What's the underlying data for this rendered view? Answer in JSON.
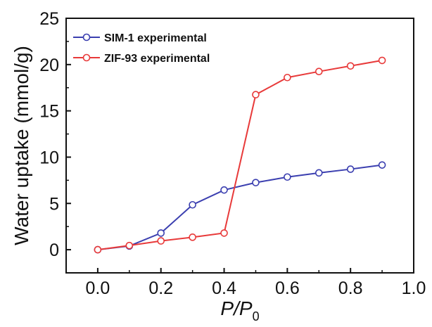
{
  "chart_data": {
    "type": "line",
    "xlabel_main": "P/P",
    "xlabel_sub": "0",
    "ylabel": "Water uptake (mmol/g)",
    "xlim": [
      -0.1,
      1.0
    ],
    "ylim": [
      -2.5,
      25
    ],
    "xticks": [
      0.0,
      0.2,
      0.4,
      0.6,
      0.8,
      1.0
    ],
    "xtick_labels": [
      "0.0",
      "0.2",
      "0.4",
      "0.6",
      "0.8",
      "1.0"
    ],
    "yticks": [
      0,
      5,
      10,
      15,
      20,
      25
    ],
    "ytick_labels": [
      "0",
      "5",
      "10",
      "15",
      "20",
      "25"
    ],
    "grid": false,
    "legend_position": "top-left",
    "series": [
      {
        "name": "SIM-1 experimental",
        "color": "#3b3fb0",
        "marker": "open-circle",
        "x": [
          0.0,
          0.1,
          0.2,
          0.3,
          0.4,
          0.5,
          0.6,
          0.7,
          0.8,
          0.9
        ],
        "y": [
          0.0,
          0.4,
          1.8,
          4.85,
          6.45,
          7.25,
          7.85,
          8.3,
          8.7,
          9.15
        ]
      },
      {
        "name": "ZIF-93 experimental",
        "color": "#e83a3a",
        "marker": "open-circle",
        "x": [
          0.0,
          0.1,
          0.2,
          0.3,
          0.4,
          0.5,
          0.6,
          0.7,
          0.8,
          0.9
        ],
        "y": [
          0.0,
          0.45,
          0.95,
          1.35,
          1.8,
          16.75,
          18.6,
          19.25,
          19.85,
          20.45
        ]
      }
    ]
  }
}
